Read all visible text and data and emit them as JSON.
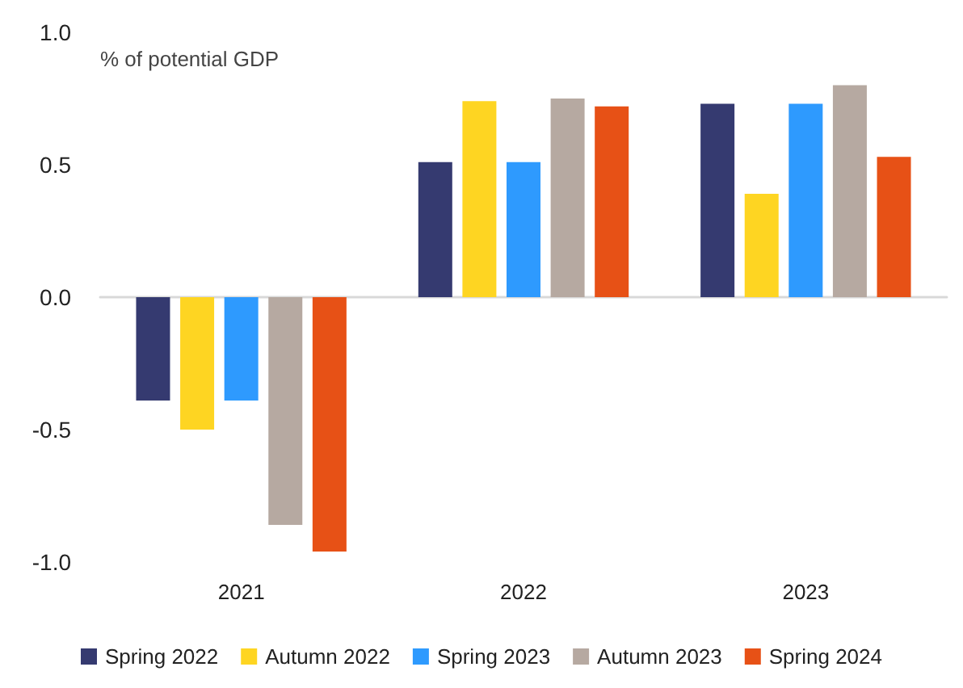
{
  "chart_data": {
    "type": "bar",
    "ylabel": "% of potential GDP",
    "categories": [
      "2021",
      "2022",
      "2023"
    ],
    "series": [
      {
        "name": "Spring 2022",
        "color": "#353a70",
        "values": [
          -0.39,
          0.51,
          0.73
        ]
      },
      {
        "name": "Autumn 2022",
        "color": "#fed522",
        "values": [
          -0.5,
          0.74,
          0.39
        ]
      },
      {
        "name": "Spring 2023",
        "color": "#2e9afe",
        "values": [
          -0.39,
          0.51,
          0.73
        ]
      },
      {
        "name": "Autumn 2023",
        "color": "#b6a9a1",
        "values": [
          -0.86,
          0.75,
          0.8
        ]
      },
      {
        "name": "Spring 2024",
        "color": "#e75116",
        "values": [
          -0.96,
          0.72,
          0.53
        ]
      }
    ],
    "ylim": [
      -1.0,
      1.0
    ],
    "yticks": [
      {
        "value": -1,
        "label": "-1.0"
      },
      -0.5,
      {
        "value": 0,
        "label": "0.0"
      },
      0.5,
      {
        "value": 1,
        "label": "1.0"
      }
    ],
    "legend": "bottom"
  }
}
